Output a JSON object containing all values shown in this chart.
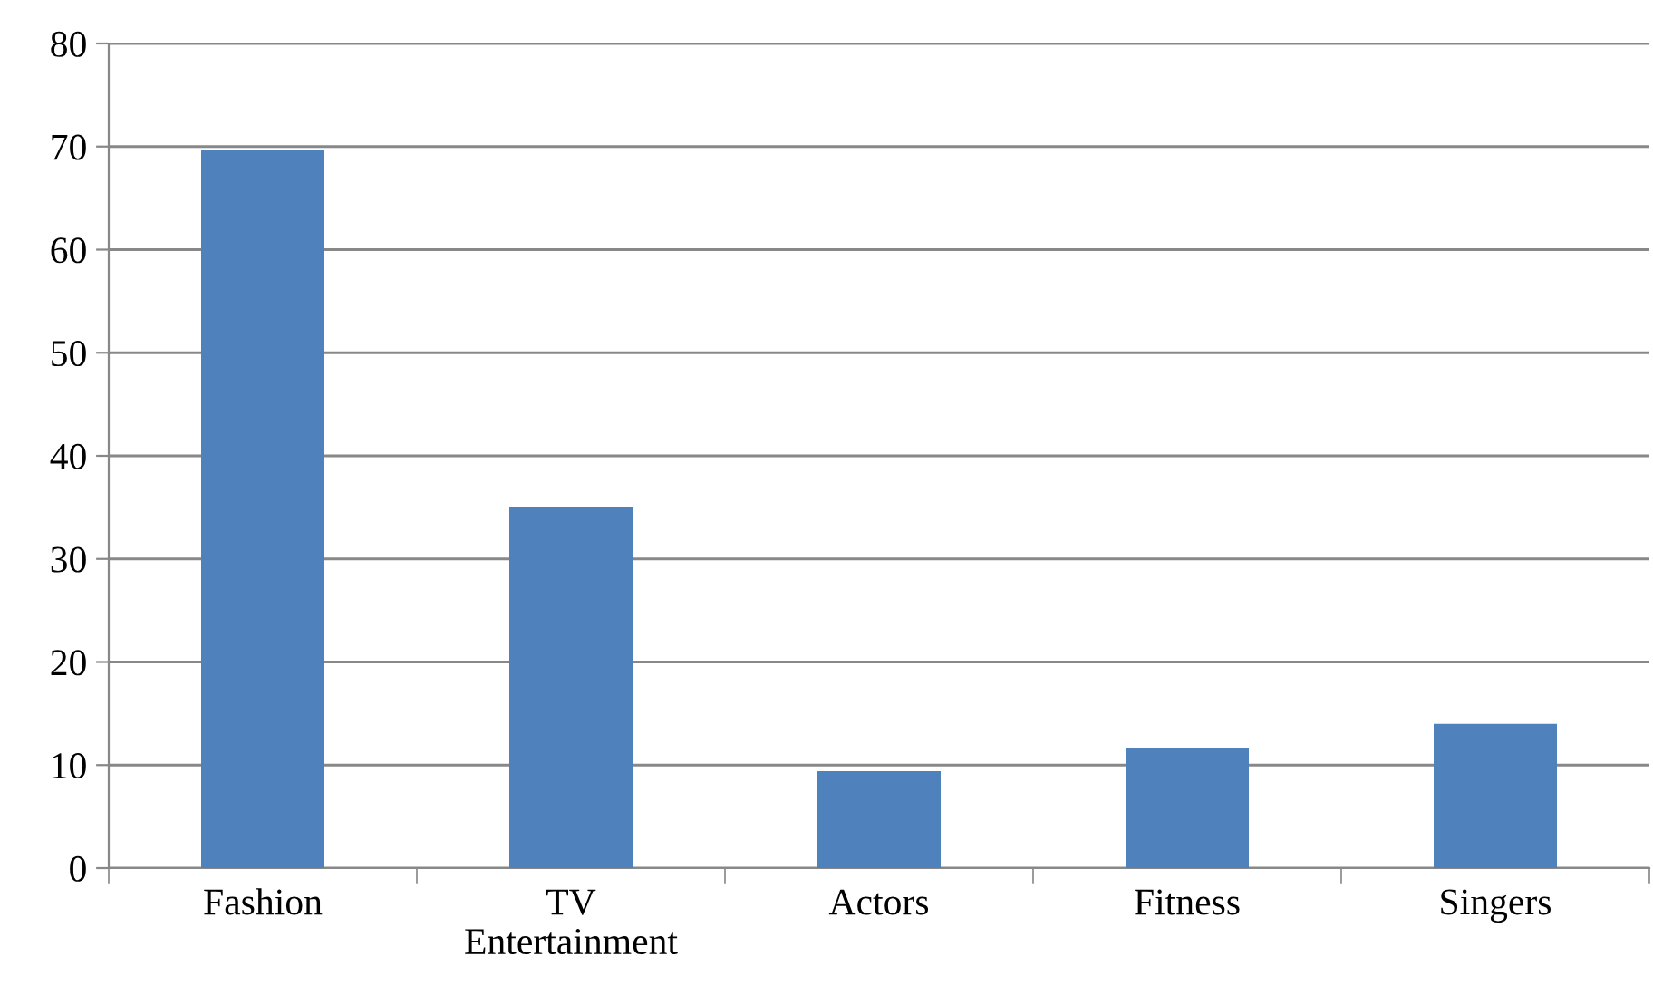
{
  "chart_data": {
    "type": "bar",
    "categories": [
      "Fashion",
      "TV\nEntertainment",
      "Actors",
      "Fitness",
      "Singers"
    ],
    "values": [
      69.7,
      35.0,
      9.4,
      11.7,
      14.0
    ],
    "color": "#4f81bd",
    "ylim": [
      0,
      80
    ],
    "yticks": [
      0,
      10,
      20,
      30,
      40,
      50,
      60,
      70,
      80
    ],
    "grid": "y",
    "legend": false
  }
}
